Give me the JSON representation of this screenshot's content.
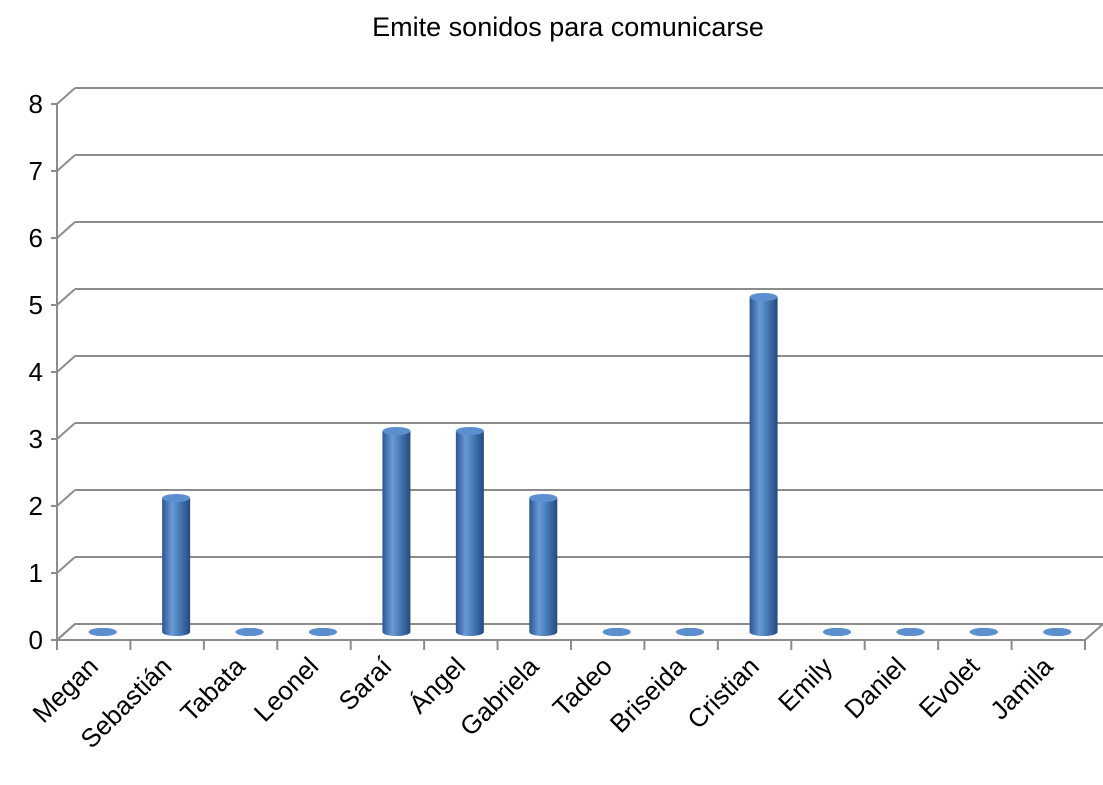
{
  "chart_data": {
    "type": "bar",
    "title": "Emite sonidos para comunicarse",
    "xlabel": "",
    "ylabel": "",
    "categories": [
      "Megan",
      "Sebastián",
      "Tabata",
      "Leonel",
      "Saraí",
      "Ángel",
      "Gabriela",
      "Tadeo",
      "Briseida",
      "Cristian",
      "Emily",
      "Daniel",
      "Evolet",
      "Jamila"
    ],
    "values": [
      0,
      2,
      0,
      0,
      3,
      3,
      2,
      0,
      0,
      5,
      0,
      0,
      0,
      0
    ],
    "ylim": [
      0,
      8
    ],
    "yticks": [
      "0",
      "1",
      "2",
      "3",
      "4",
      "5",
      "6",
      "7",
      "8"
    ],
    "grid": true,
    "legend": "none",
    "style": "3d-cylinder",
    "bar_color": "#4a7ebb"
  }
}
